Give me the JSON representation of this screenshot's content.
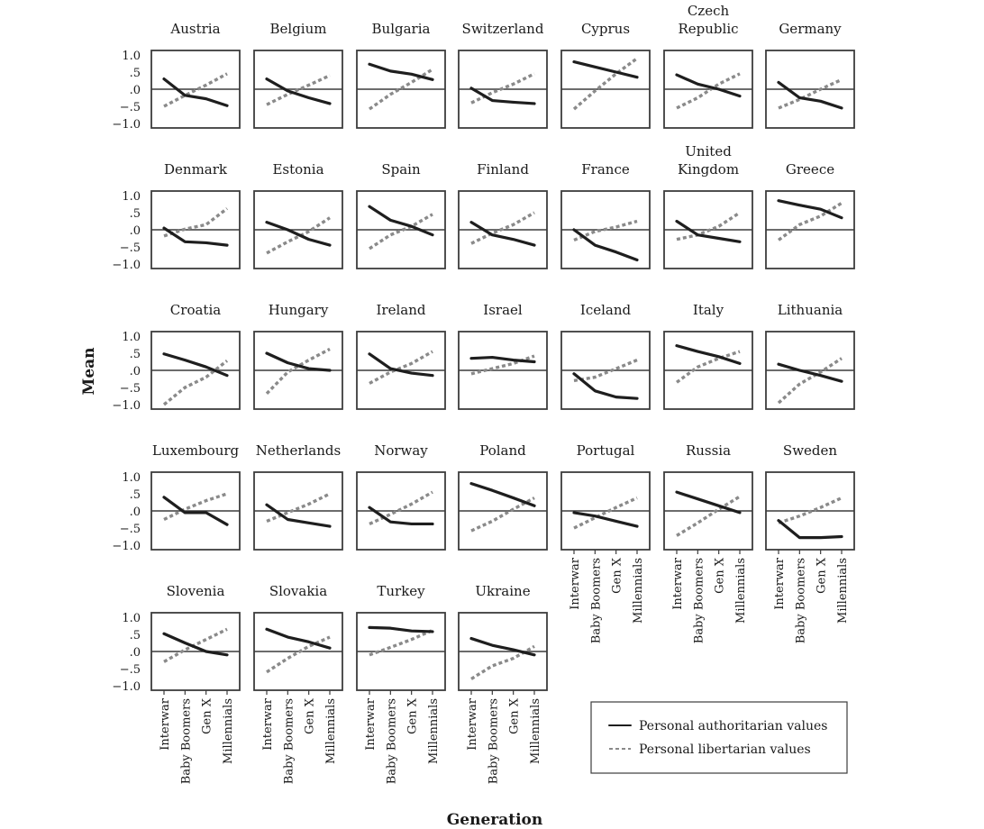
{
  "chart_data": {
    "type": "line",
    "ylabel": "Mean",
    "xlabel": "Generation",
    "ylim": [
      -1.0,
      1.0
    ],
    "y_ticks": [
      "1.0",
      ".5",
      ".0",
      "−.5",
      "−1.0"
    ],
    "y_tick_values": [
      1.0,
      0.5,
      0.0,
      -0.5,
      -1.0
    ],
    "categories": [
      "Interwar",
      "Baby Boomers",
      "Gen X",
      "Millennials"
    ],
    "legend": {
      "authoritarian": "Personal authoritarian values",
      "libertarian": "Personal libertarian values"
    },
    "panels": [
      {
        "title": [
          "Austria"
        ],
        "authoritarian": [
          0.3,
          -0.18,
          -0.28,
          -0.48
        ],
        "libertarian": [
          -0.5,
          -0.18,
          0.12,
          0.45
        ]
      },
      {
        "title": [
          "Belgium"
        ],
        "authoritarian": [
          0.3,
          -0.05,
          -0.25,
          -0.42
        ],
        "libertarian": [
          -0.45,
          -0.15,
          0.12,
          0.4
        ]
      },
      {
        "title": [
          "Bulgaria"
        ],
        "authoritarian": [
          0.73,
          0.53,
          0.44,
          0.28
        ],
        "libertarian": [
          -0.58,
          -0.15,
          0.2,
          0.58
        ]
      },
      {
        "title": [
          "Switzerland"
        ],
        "authoritarian": [
          0.03,
          -0.33,
          -0.38,
          -0.42
        ],
        "libertarian": [
          -0.4,
          -0.1,
          0.15,
          0.45
        ]
      },
      {
        "title": [
          "Cyprus"
        ],
        "authoritarian": [
          0.8,
          0.65,
          0.5,
          0.35
        ],
        "libertarian": [
          -0.58,
          -0.05,
          0.45,
          0.9
        ]
      },
      {
        "title": [
          "Czech",
          "Republic"
        ],
        "authoritarian": [
          0.42,
          0.15,
          0.0,
          -0.2
        ],
        "libertarian": [
          -0.55,
          -0.25,
          0.15,
          0.45
        ]
      },
      {
        "title": [
          "Germany"
        ],
        "authoritarian": [
          0.2,
          -0.25,
          -0.35,
          -0.55
        ],
        "libertarian": [
          -0.55,
          -0.3,
          0.0,
          0.28
        ]
      },
      {
        "title": [
          "Denmark"
        ],
        "authoritarian": [
          0.05,
          -0.35,
          -0.38,
          -0.45
        ],
        "libertarian": [
          -0.18,
          0.02,
          0.15,
          0.62
        ]
      },
      {
        "title": [
          "Estonia"
        ],
        "authoritarian": [
          0.22,
          0.0,
          -0.28,
          -0.45
        ],
        "libertarian": [
          -0.68,
          -0.35,
          -0.05,
          0.35
        ]
      },
      {
        "title": [
          "Spain"
        ],
        "authoritarian": [
          0.68,
          0.28,
          0.1,
          -0.15
        ],
        "libertarian": [
          -0.55,
          -0.15,
          0.1,
          0.45
        ]
      },
      {
        "title": [
          "Finland"
        ],
        "authoritarian": [
          0.22,
          -0.15,
          -0.28,
          -0.45
        ],
        "libertarian": [
          -0.4,
          -0.1,
          0.15,
          0.5
        ]
      },
      {
        "title": [
          "France"
        ],
        "authoritarian": [
          0.0,
          -0.45,
          -0.65,
          -0.88
        ],
        "libertarian": [
          -0.3,
          -0.05,
          0.08,
          0.25
        ]
      },
      {
        "title": [
          "United",
          "Kingdom"
        ],
        "authoritarian": [
          0.25,
          -0.15,
          -0.25,
          -0.35
        ],
        "libertarian": [
          -0.28,
          -0.15,
          0.1,
          0.5
        ]
      },
      {
        "title": [
          "Greece"
        ],
        "authoritarian": [
          0.85,
          0.72,
          0.6,
          0.35
        ],
        "libertarian": [
          -0.3,
          0.15,
          0.4,
          0.78
        ]
      },
      {
        "title": [
          "Croatia"
        ],
        "authoritarian": [
          0.48,
          0.3,
          0.1,
          -0.15
        ],
        "libertarian": [
          -1.0,
          -0.5,
          -0.2,
          0.28
        ]
      },
      {
        "title": [
          "Hungary"
        ],
        "authoritarian": [
          0.5,
          0.22,
          0.05,
          0.0
        ],
        "libertarian": [
          -0.68,
          -0.05,
          0.3,
          0.62
        ]
      },
      {
        "title": [
          "Ireland"
        ],
        "authoritarian": [
          0.48,
          0.05,
          -0.08,
          -0.15
        ],
        "libertarian": [
          -0.38,
          -0.05,
          0.2,
          0.55
        ]
      },
      {
        "title": [
          "Israel"
        ],
        "authoritarian": [
          0.35,
          0.38,
          0.3,
          0.25
        ],
        "libertarian": [
          -0.1,
          0.05,
          0.2,
          0.42
        ]
      },
      {
        "title": [
          "Iceland"
        ],
        "authoritarian": [
          -0.1,
          -0.6,
          -0.78,
          -0.82
        ],
        "libertarian": [
          -0.3,
          -0.2,
          0.05,
          0.3
        ]
      },
      {
        "title": [
          "Italy"
        ],
        "authoritarian": [
          0.72,
          0.55,
          0.4,
          0.2
        ],
        "libertarian": [
          -0.35,
          0.1,
          0.35,
          0.55
        ]
      },
      {
        "title": [
          "Lithuania"
        ],
        "authoritarian": [
          0.18,
          0.0,
          -0.15,
          -0.32
        ],
        "libertarian": [
          -0.95,
          -0.4,
          -0.05,
          0.35
        ]
      },
      {
        "title": [
          "Luxembourg"
        ],
        "authoritarian": [
          0.4,
          -0.05,
          -0.05,
          -0.4
        ],
        "libertarian": [
          -0.25,
          0.05,
          0.3,
          0.5
        ]
      },
      {
        "title": [
          "Netherlands"
        ],
        "authoritarian": [
          0.18,
          -0.25,
          -0.35,
          -0.45
        ],
        "libertarian": [
          -0.3,
          -0.05,
          0.2,
          0.5
        ]
      },
      {
        "title": [
          "Norway"
        ],
        "authoritarian": [
          0.1,
          -0.32,
          -0.38,
          -0.38
        ],
        "libertarian": [
          -0.38,
          -0.1,
          0.2,
          0.55
        ]
      },
      {
        "title": [
          "Poland"
        ],
        "authoritarian": [
          0.8,
          0.6,
          0.38,
          0.15
        ],
        "libertarian": [
          -0.58,
          -0.3,
          0.05,
          0.38
        ]
      },
      {
        "title": [
          "Portugal"
        ],
        "authoritarian": [
          -0.05,
          -0.15,
          -0.3,
          -0.45
        ],
        "libertarian": [
          -0.5,
          -0.2,
          0.1,
          0.38
        ]
      },
      {
        "title": [
          "Russia"
        ],
        "authoritarian": [
          0.55,
          0.35,
          0.15,
          -0.05
        ],
        "libertarian": [
          -0.72,
          -0.35,
          0.05,
          0.42
        ]
      },
      {
        "title": [
          "Sweden"
        ],
        "authoritarian": [
          -0.28,
          -0.78,
          -0.78,
          -0.75
        ],
        "libertarian": [
          -0.35,
          -0.15,
          0.1,
          0.38
        ]
      },
      {
        "title": [
          "Slovenia"
        ],
        "authoritarian": [
          0.52,
          0.25,
          0.0,
          -0.1
        ],
        "libertarian": [
          -0.3,
          0.05,
          0.35,
          0.65
        ]
      },
      {
        "title": [
          "Slovakia"
        ],
        "authoritarian": [
          0.65,
          0.42,
          0.28,
          0.1
        ],
        "libertarian": [
          -0.6,
          -0.2,
          0.15,
          0.42
        ]
      },
      {
        "title": [
          "Turkey"
        ],
        "authoritarian": [
          0.7,
          0.68,
          0.6,
          0.58
        ],
        "libertarian": [
          -0.1,
          0.12,
          0.35,
          0.62
        ]
      },
      {
        "title": [
          "Ukraine"
        ],
        "authoritarian": [
          0.38,
          0.18,
          0.05,
          -0.1
        ],
        "libertarian": [
          -0.8,
          -0.42,
          -0.2,
          0.15
        ]
      }
    ]
  }
}
